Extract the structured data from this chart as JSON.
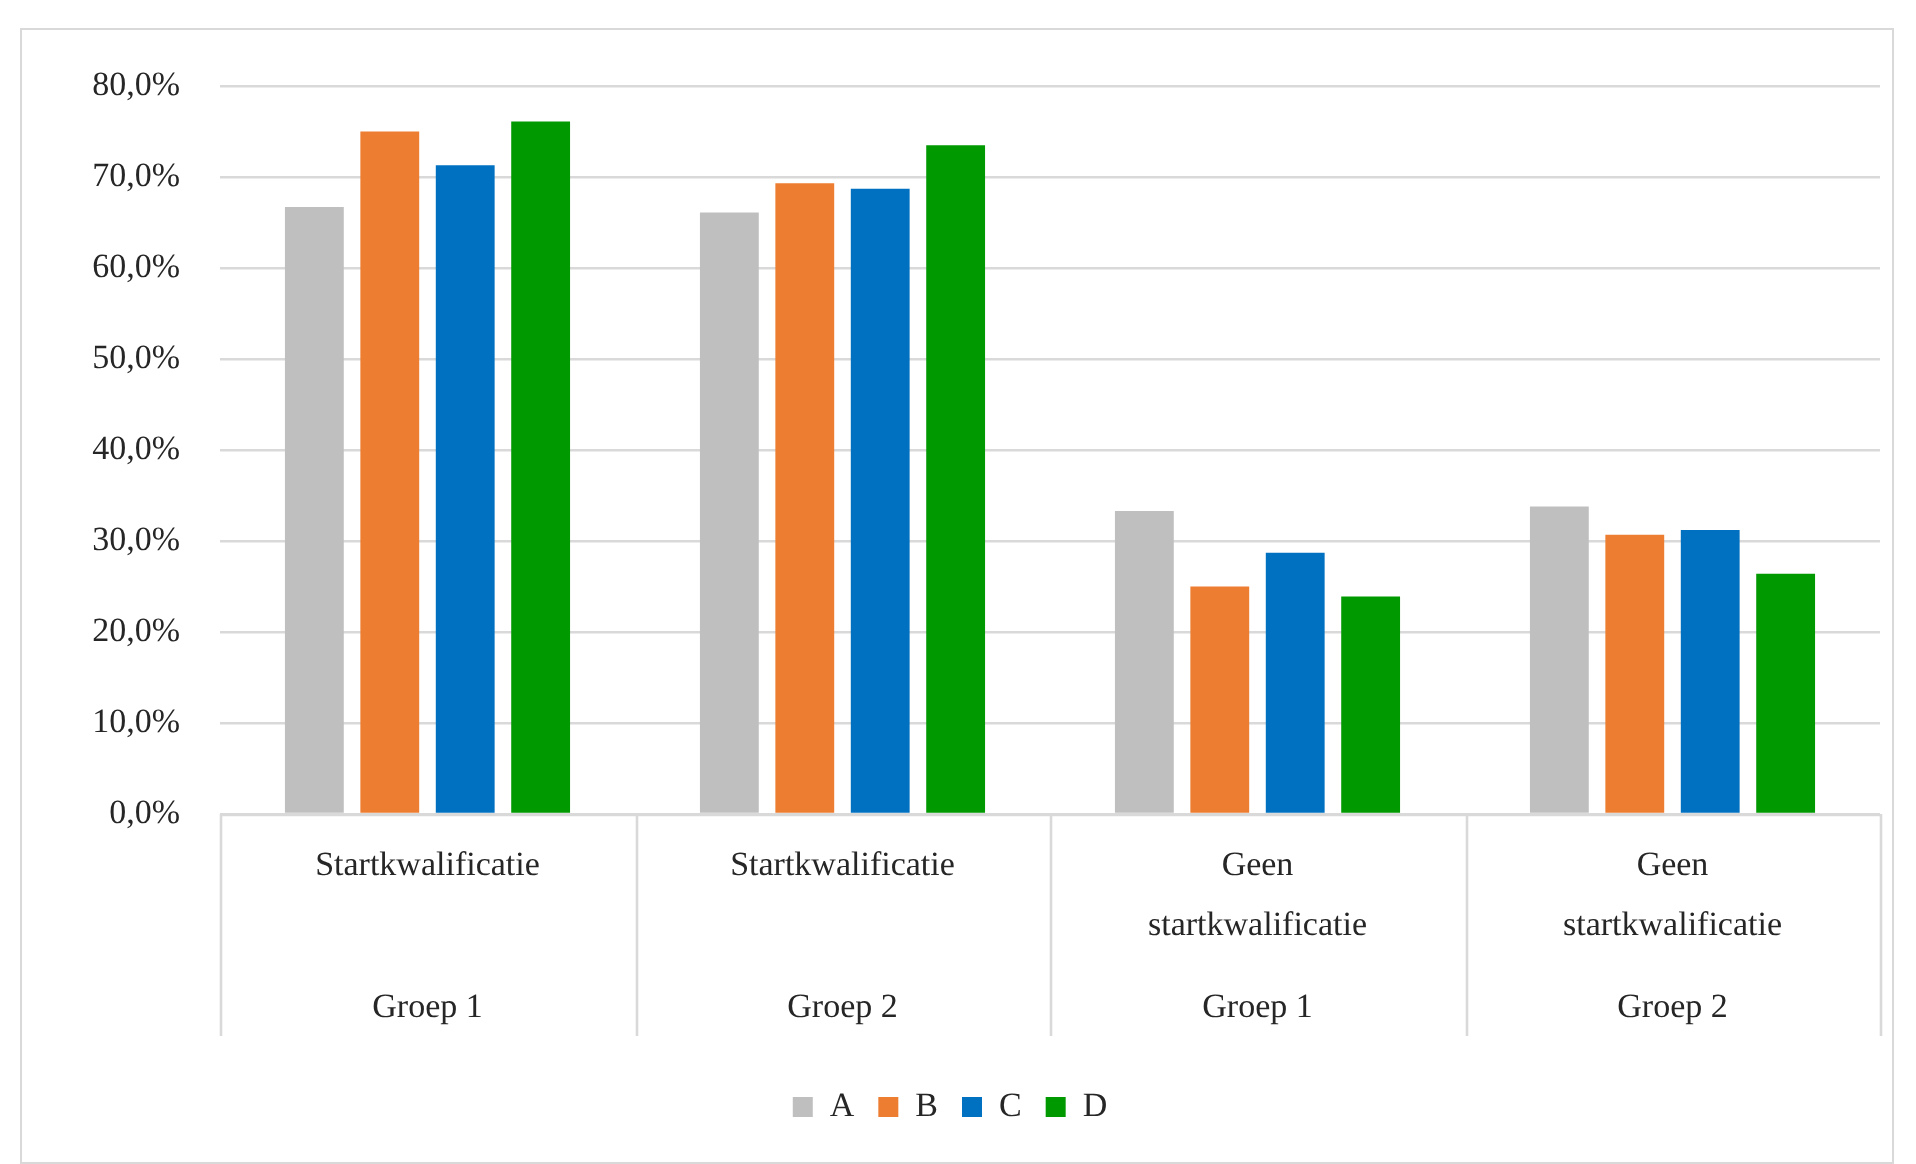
{
  "chart_data": {
    "type": "bar",
    "categories": [
      "Startkwalificatie\nGroep 1",
      "Startkwalificatie\nGroep 2",
      "Geen startkwalificatie\nGroep 1",
      "Geen startkwalificatie\nGroep 2"
    ],
    "series": [
      {
        "name": "A",
        "color": "#bfbfbf",
        "values": [
          66.7,
          66.1,
          33.3,
          33.8
        ]
      },
      {
        "name": "B",
        "color": "#ed7d31",
        "values": [
          75.0,
          69.3,
          25.0,
          30.7
        ]
      },
      {
        "name": "C",
        "color": "#0070c0",
        "values": [
          71.3,
          68.7,
          28.7,
          31.2
        ]
      },
      {
        "name": "D",
        "color": "#009900",
        "values": [
          76.1,
          73.5,
          23.9,
          26.4
        ]
      }
    ],
    "ylim": [
      0,
      80
    ],
    "yticks": [
      {
        "value": 0,
        "label": "0,0%"
      },
      {
        "value": 10,
        "label": "10,0%"
      },
      {
        "value": 20,
        "label": "20,0%"
      },
      {
        "value": 30,
        "label": "30,0%"
      },
      {
        "value": 40,
        "label": "40,0%"
      },
      {
        "value": 50,
        "label": "50,0%"
      },
      {
        "value": 60,
        "label": "60,0%"
      },
      {
        "value": 70,
        "label": "70,0%"
      },
      {
        "value": 80,
        "label": "80,0%"
      }
    ],
    "grid": "y",
    "legend": "bottom"
  }
}
